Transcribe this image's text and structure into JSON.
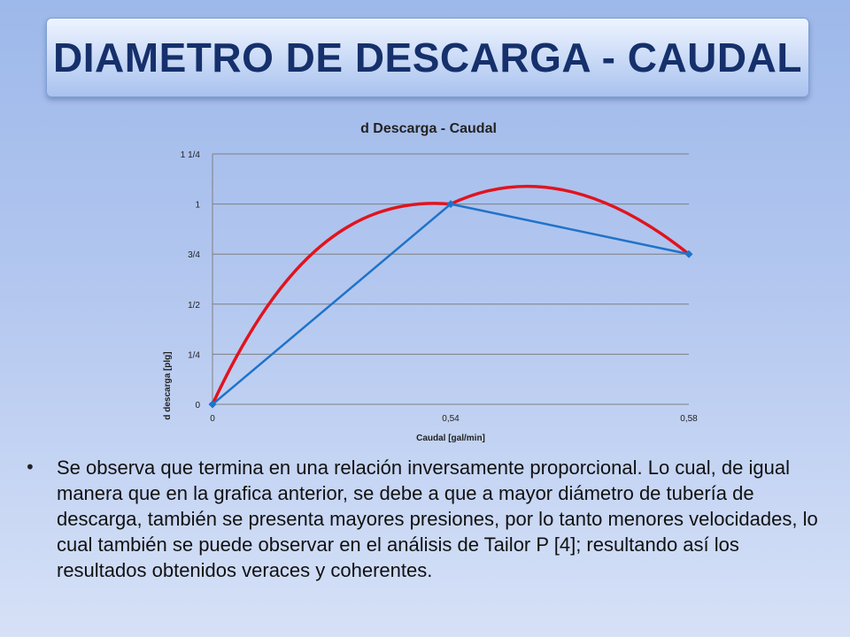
{
  "slide": {
    "title": "DIAMETRO DE DESCARGA - CAUDAL",
    "bullet_text": "Se observa que termina en una relación inversamente proporcional. Lo cual, de igual manera que en la grafica anterior, se debe a que a mayor diámetro de tubería de descarga, también se presenta mayores presiones, por lo tanto menores velocidades, lo cual  también se puede observar en el análisis de Tailor P [4]; resultando así los resultados obtenidos veraces y coherentes."
  },
  "chart_data": {
    "type": "line",
    "title": "d Descarga - Caudal",
    "xlabel": "Caudal  [gal/min]",
    "ylabel": "d descarga  [plg]",
    "categories": [
      "0",
      "0,54",
      "0,58"
    ],
    "y_ticks": [
      "0",
      "1/4",
      "1/2",
      "3/4",
      "1",
      "1 1/4"
    ],
    "ylim": [
      0,
      1.25
    ],
    "grid": true,
    "series": [
      {
        "values": [
          0,
          1,
          0.75
        ],
        "color": "#1f73c9",
        "markers": true
      },
      {
        "values": [
          0,
          1,
          0.75
        ],
        "color": "#e0141e",
        "smooth": true,
        "peak": 1.05
      }
    ]
  }
}
